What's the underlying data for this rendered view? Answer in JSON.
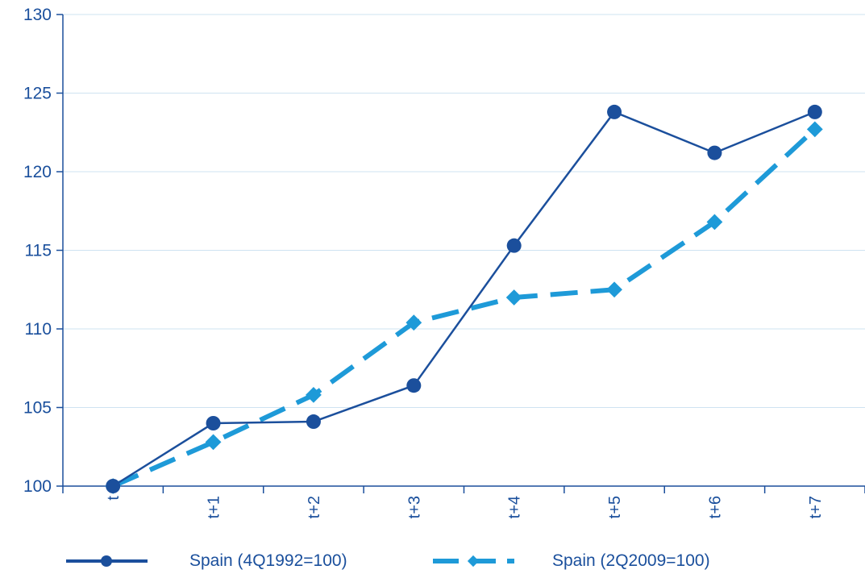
{
  "colors": {
    "series1": "#1b4f9c",
    "series2": "#1e9ad8",
    "text": "#1a4f9c",
    "grid": "#cfe3f1",
    "axis": "#1b4f9c"
  },
  "chart_data": {
    "type": "line",
    "title": "",
    "xlabel": "",
    "ylabel": "",
    "categories": [
      "t",
      "t+1",
      "t+2",
      "t+3",
      "t+4",
      "t+5",
      "t+6",
      "t+7"
    ],
    "ylim": [
      100,
      130
    ],
    "yticks": [
      "100",
      "105",
      "110",
      "115",
      "120",
      "125",
      "130"
    ],
    "grid": "horizontal",
    "legend_position": "bottom",
    "series": [
      {
        "name": "Spain (4Q1992=100)",
        "style": "solid",
        "marker": "circle",
        "values": [
          100,
          104.0,
          104.1,
          106.4,
          115.3,
          123.8,
          121.2,
          123.8
        ]
      },
      {
        "name": "Spain (2Q2009=100)",
        "style": "dashed",
        "marker": "diamond",
        "values": [
          100,
          102.8,
          105.8,
          110.4,
          112.0,
          112.5,
          116.8,
          122.7
        ]
      }
    ]
  }
}
